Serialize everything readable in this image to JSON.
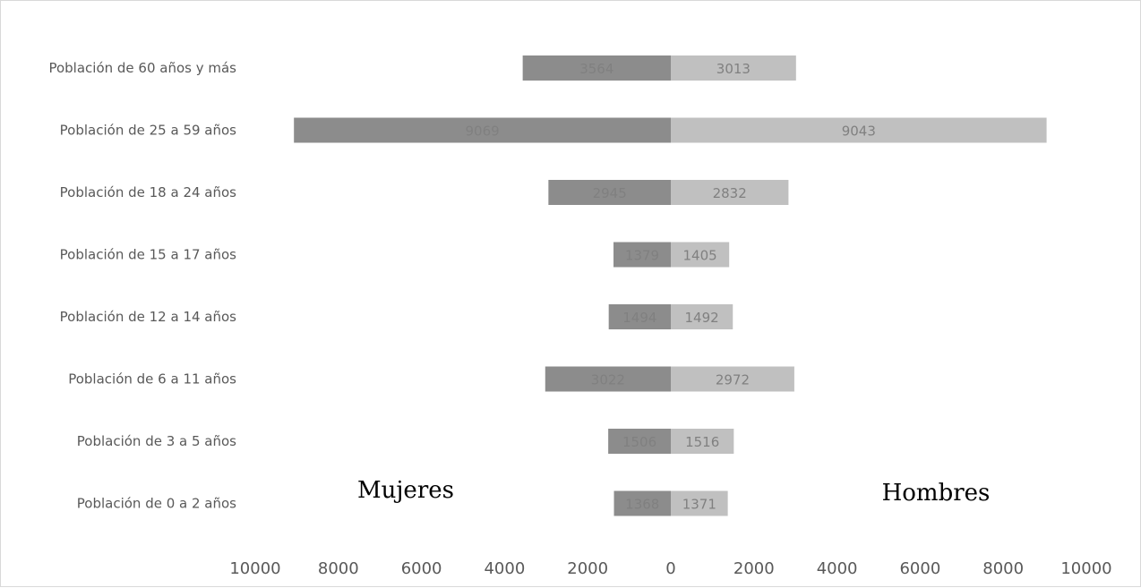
{
  "chart_data": {
    "type": "bar",
    "orientation": "horizontal-diverging",
    "title": "",
    "categories": [
      "Población de 60 años y más",
      "Población de 25 a 59 años",
      "Población de 18 a 24 años",
      "Población de 15 a 17 años",
      "Población de 12 a 14 años",
      "Población de 6 a 11 años",
      "Población de 3 a 5 años",
      "Población de 0 a 2 años"
    ],
    "series": [
      {
        "values": [
          3564,
          9069,
          2945,
          1379,
          1494,
          3022,
          1506,
          1368
        ],
        "color": "#8c8c8c",
        "side": "left"
      },
      {
        "values": [
          3013,
          9043,
          2832,
          1405,
          1492,
          2972,
          1516,
          1371
        ],
        "color": "#c0c0c0",
        "side": "right"
      }
    ],
    "xlim": [
      -10000,
      10000
    ],
    "x_ticks": [
      -10000,
      -8000,
      -6000,
      -4000,
      -2000,
      0,
      2000,
      4000,
      6000,
      8000,
      10000
    ],
    "x_tick_labels": [
      "10000",
      "8000",
      "6000",
      "4000",
      "2000",
      "0",
      "2000",
      "4000",
      "6000",
      "8000",
      "10000"
    ],
    "annotations": {
      "left": "Mujeres",
      "right": "Hombres"
    },
    "grid": false,
    "legend": "none"
  }
}
